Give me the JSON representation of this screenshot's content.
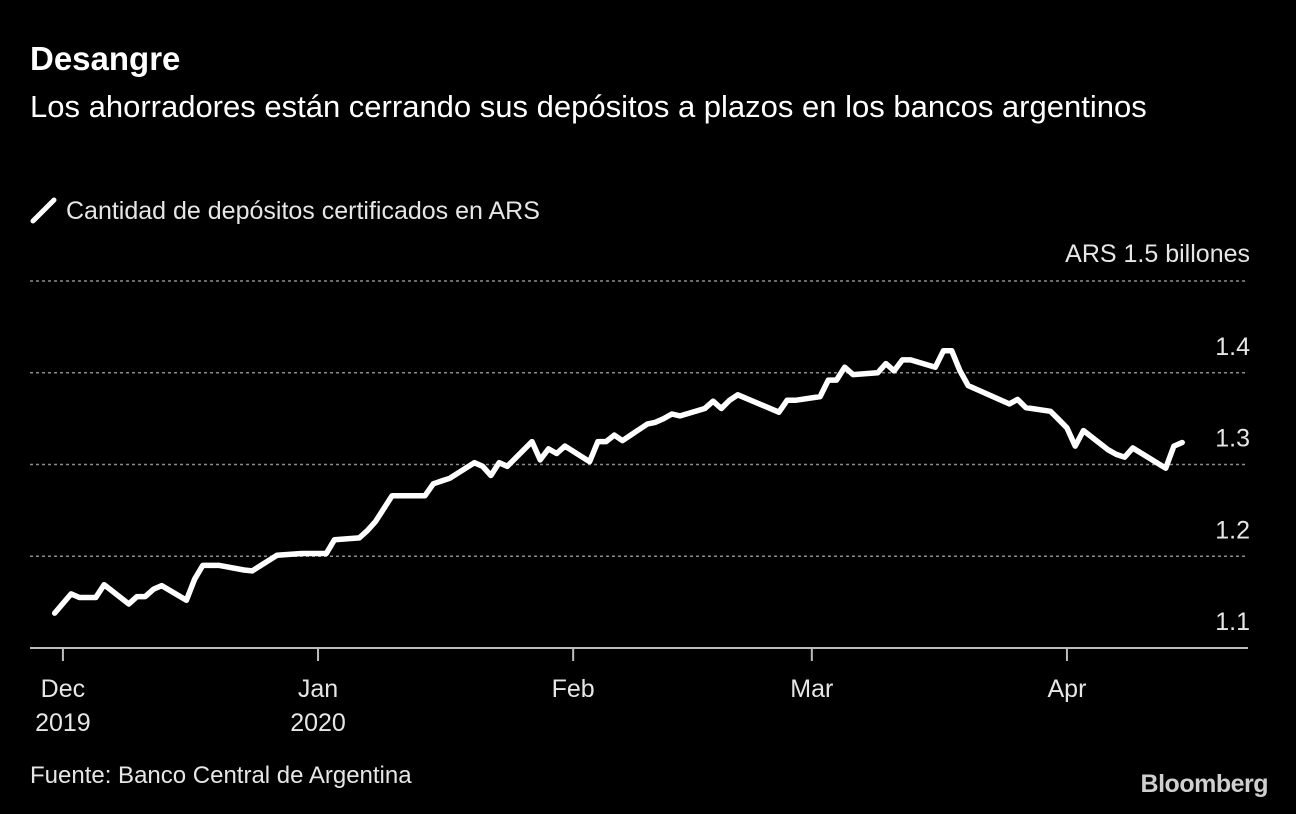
{
  "title": "Desangre",
  "subtitle": "Los ahorradores están cerrando sus depósitos a plazos en los bancos argentinos",
  "source": "Fuente: Banco Central de Argentina",
  "logo": "Bloomberg",
  "colors": {
    "background": "#000000",
    "line": "#ffffff",
    "grid": "#8c8c8c",
    "text": "#e6e6e6"
  },
  "chart_data": {
    "type": "line",
    "series": [
      {
        "name": "Cantidad de depósitos certificados en ARS",
        "x": [
          "2019-11-30",
          "2019-12-02",
          "2019-12-03",
          "2019-12-05",
          "2019-12-06",
          "2019-12-09",
          "2019-12-10",
          "2019-12-11",
          "2019-12-12",
          "2019-12-13",
          "2019-12-16",
          "2019-12-17",
          "2019-12-18",
          "2019-12-19",
          "2019-12-20",
          "2019-12-23",
          "2019-12-24",
          "2019-12-27",
          "2019-12-30",
          "2020-01-02",
          "2020-01-03",
          "2020-01-06",
          "2020-01-07",
          "2020-01-08",
          "2020-01-09",
          "2020-01-10",
          "2020-01-13",
          "2020-01-14",
          "2020-01-15",
          "2020-01-16",
          "2020-01-17",
          "2020-01-20",
          "2020-01-21",
          "2020-01-22",
          "2020-01-23",
          "2020-01-24",
          "2020-01-27",
          "2020-01-28",
          "2020-01-29",
          "2020-01-30",
          "2020-01-31",
          "2020-02-03",
          "2020-02-04",
          "2020-02-05",
          "2020-02-06",
          "2020-02-07",
          "2020-02-10",
          "2020-02-11",
          "2020-02-12",
          "2020-02-13",
          "2020-02-14",
          "2020-02-17",
          "2020-02-18",
          "2020-02-19",
          "2020-02-20",
          "2020-02-21",
          "2020-02-26",
          "2020-02-27",
          "2020-02-28",
          "2020-03-02",
          "2020-03-03",
          "2020-03-04",
          "2020-03-05",
          "2020-03-06",
          "2020-03-09",
          "2020-03-10",
          "2020-03-11",
          "2020-03-12",
          "2020-03-13",
          "2020-03-16",
          "2020-03-17",
          "2020-03-18",
          "2020-03-19",
          "2020-03-20",
          "2020-03-25",
          "2020-03-26",
          "2020-03-27",
          "2020-03-30",
          "2020-03-31",
          "2020-04-01",
          "2020-04-02",
          "2020-04-03",
          "2020-04-06",
          "2020-04-07",
          "2020-04-08",
          "2020-04-09",
          "2020-04-13",
          "2020-04-14",
          "2020-04-15"
        ],
        "values": [
          1.138,
          1.159,
          1.155,
          1.155,
          1.169,
          1.148,
          1.156,
          1.156,
          1.164,
          1.168,
          1.152,
          1.175,
          1.19,
          1.19,
          1.19,
          1.185,
          1.184,
          1.201,
          1.203,
          1.203,
          1.218,
          1.22,
          1.228,
          1.238,
          1.252,
          1.266,
          1.266,
          1.266,
          1.279,
          1.282,
          1.285,
          1.302,
          1.298,
          1.288,
          1.302,
          1.298,
          1.325,
          1.305,
          1.317,
          1.312,
          1.32,
          1.303,
          1.325,
          1.325,
          1.332,
          1.326,
          1.344,
          1.346,
          1.35,
          1.355,
          1.353,
          1.361,
          1.369,
          1.361,
          1.37,
          1.376,
          1.357,
          1.37,
          1.37,
          1.374,
          1.392,
          1.392,
          1.406,
          1.398,
          1.4,
          1.41,
          1.402,
          1.414,
          1.414,
          1.406,
          1.424,
          1.424,
          1.402,
          1.386,
          1.366,
          1.371,
          1.362,
          1.358,
          1.349,
          1.34,
          1.32,
          1.337,
          1.316,
          1.311,
          1.308,
          1.318,
          1.296,
          1.32,
          1.324
        ]
      }
    ],
    "x_ticks": [
      {
        "date": "2019-12-01",
        "label": "Dec",
        "sublabel": "2019"
      },
      {
        "date": "2020-01-01",
        "label": "Jan",
        "sublabel": "2020"
      },
      {
        "date": "2020-02-01",
        "label": "Feb",
        "sublabel": ""
      },
      {
        "date": "2020-03-01",
        "label": "Mar",
        "sublabel": ""
      },
      {
        "date": "2020-04-01",
        "label": "Apr",
        "sublabel": ""
      }
    ],
    "y_ticks": [
      {
        "value": 1.1,
        "label": "1.1"
      },
      {
        "value": 1.2,
        "label": "1.2"
      },
      {
        "value": 1.3,
        "label": "1.3"
      },
      {
        "value": 1.4,
        "label": "1.4"
      },
      {
        "value": 1.5,
        "label": "ARS  1.5 billones"
      }
    ],
    "ylim": [
      1.1,
      1.5
    ],
    "xlim": [
      "2019-11-27",
      "2020-04-23"
    ],
    "grid": true,
    "legend_position": "top-left"
  }
}
